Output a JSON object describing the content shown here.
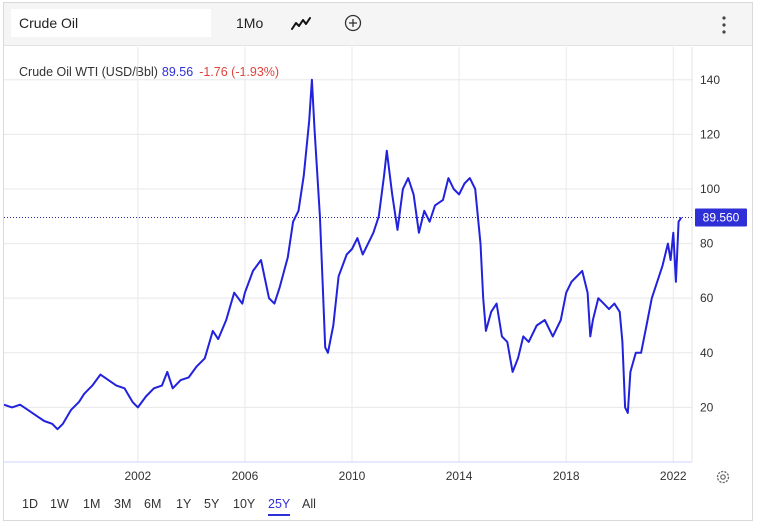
{
  "toolbar": {
    "symbol_value": "Crude Oil",
    "interval_label": "1Mo",
    "chart_type_icon": "line-chart-icon",
    "add_icon": "plus-circle-icon",
    "more_icon": "vertical-dots-icon"
  },
  "legend": {
    "name": "Crude Oil WTI (USD/Bbl)",
    "price": "89.56",
    "change": "-1.76 (-1.93%)"
  },
  "price_label": "89.560",
  "ranges": [
    {
      "label": "1D",
      "active": false
    },
    {
      "label": "1W",
      "active": false
    },
    {
      "label": "1M",
      "active": false
    },
    {
      "label": "3M",
      "active": false
    },
    {
      "label": "6M",
      "active": false
    },
    {
      "label": "1Y",
      "active": false
    },
    {
      "label": "5Y",
      "active": false
    },
    {
      "label": "10Y",
      "active": false
    },
    {
      "label": "25Y",
      "active": true
    },
    {
      "label": "All",
      "active": false
    }
  ],
  "colors": {
    "line": "#2222dd",
    "change_negative": "#e0433d",
    "price_tag": "#2f2fd8",
    "grid": "#e8e8e8"
  },
  "chart_data": {
    "type": "line",
    "x_ticks": [
      "2002",
      "2006",
      "2010",
      "2014",
      "2018",
      "2022"
    ],
    "x_tick_years": [
      2002,
      2006,
      2010,
      2014,
      2018,
      2022
    ],
    "xlim": [
      1997.0,
      2022.7
    ],
    "y_ticks": [
      20,
      40,
      60,
      80,
      100,
      120,
      140
    ],
    "ylim": [
      0,
      152
    ],
    "last_value": 89.56,
    "grid": true,
    "series": [
      {
        "points": [
          [
            1997.0,
            21
          ],
          [
            1997.3,
            20
          ],
          [
            1997.6,
            21
          ],
          [
            1997.9,
            19
          ],
          [
            1998.2,
            17
          ],
          [
            1998.5,
            15
          ],
          [
            1998.8,
            14
          ],
          [
            1999.0,
            12
          ],
          [
            1999.2,
            14
          ],
          [
            1999.5,
            19
          ],
          [
            1999.8,
            22
          ],
          [
            2000.0,
            25
          ],
          [
            2000.3,
            28
          ],
          [
            2000.6,
            32
          ],
          [
            2000.9,
            30
          ],
          [
            2001.2,
            28
          ],
          [
            2001.5,
            27
          ],
          [
            2001.8,
            22
          ],
          [
            2002.0,
            20
          ],
          [
            2002.3,
            24
          ],
          [
            2002.6,
            27
          ],
          [
            2002.9,
            28
          ],
          [
            2003.1,
            33
          ],
          [
            2003.3,
            27
          ],
          [
            2003.6,
            30
          ],
          [
            2003.9,
            31
          ],
          [
            2004.2,
            35
          ],
          [
            2004.5,
            38
          ],
          [
            2004.8,
            48
          ],
          [
            2005.0,
            45
          ],
          [
            2005.3,
            52
          ],
          [
            2005.6,
            62
          ],
          [
            2005.9,
            58
          ],
          [
            2006.0,
            62
          ],
          [
            2006.3,
            70
          ],
          [
            2006.6,
            74
          ],
          [
            2006.9,
            60
          ],
          [
            2007.1,
            58
          ],
          [
            2007.3,
            64
          ],
          [
            2007.6,
            75
          ],
          [
            2007.8,
            88
          ],
          [
            2008.0,
            92
          ],
          [
            2008.2,
            105
          ],
          [
            2008.4,
            125
          ],
          [
            2008.5,
            140
          ],
          [
            2008.6,
            122
          ],
          [
            2008.8,
            90
          ],
          [
            2008.9,
            66
          ],
          [
            2009.0,
            42
          ],
          [
            2009.1,
            40
          ],
          [
            2009.3,
            50
          ],
          [
            2009.5,
            68
          ],
          [
            2009.8,
            76
          ],
          [
            2010.0,
            78
          ],
          [
            2010.2,
            82
          ],
          [
            2010.4,
            76
          ],
          [
            2010.6,
            80
          ],
          [
            2010.8,
            84
          ],
          [
            2011.0,
            90
          ],
          [
            2011.2,
            105
          ],
          [
            2011.3,
            114
          ],
          [
            2011.5,
            98
          ],
          [
            2011.7,
            85
          ],
          [
            2011.9,
            100
          ],
          [
            2012.1,
            104
          ],
          [
            2012.3,
            98
          ],
          [
            2012.5,
            84
          ],
          [
            2012.7,
            92
          ],
          [
            2012.9,
            88
          ],
          [
            2013.1,
            94
          ],
          [
            2013.4,
            96
          ],
          [
            2013.6,
            104
          ],
          [
            2013.8,
            100
          ],
          [
            2014.0,
            98
          ],
          [
            2014.2,
            102
          ],
          [
            2014.4,
            104
          ],
          [
            2014.6,
            100
          ],
          [
            2014.8,
            80
          ],
          [
            2014.9,
            60
          ],
          [
            2015.0,
            48
          ],
          [
            2015.2,
            55
          ],
          [
            2015.4,
            58
          ],
          [
            2015.6,
            46
          ],
          [
            2015.8,
            44
          ],
          [
            2016.0,
            33
          ],
          [
            2016.2,
            38
          ],
          [
            2016.4,
            46
          ],
          [
            2016.6,
            44
          ],
          [
            2016.9,
            50
          ],
          [
            2017.2,
            52
          ],
          [
            2017.5,
            46
          ],
          [
            2017.8,
            52
          ],
          [
            2018.0,
            62
          ],
          [
            2018.2,
            66
          ],
          [
            2018.4,
            68
          ],
          [
            2018.6,
            70
          ],
          [
            2018.8,
            62
          ],
          [
            2018.9,
            46
          ],
          [
            2019.0,
            52
          ],
          [
            2019.2,
            60
          ],
          [
            2019.4,
            58
          ],
          [
            2019.6,
            56
          ],
          [
            2019.8,
            58
          ],
          [
            2020.0,
            55
          ],
          [
            2020.1,
            44
          ],
          [
            2020.2,
            20
          ],
          [
            2020.3,
            18
          ],
          [
            2020.4,
            33
          ],
          [
            2020.6,
            40
          ],
          [
            2020.8,
            40
          ],
          [
            2021.0,
            50
          ],
          [
            2021.2,
            60
          ],
          [
            2021.4,
            66
          ],
          [
            2021.6,
            72
          ],
          [
            2021.8,
            80
          ],
          [
            2021.9,
            74
          ],
          [
            2022.0,
            84
          ],
          [
            2022.1,
            66
          ],
          [
            2022.2,
            88
          ],
          [
            2022.3,
            89.56
          ]
        ]
      }
    ]
  }
}
